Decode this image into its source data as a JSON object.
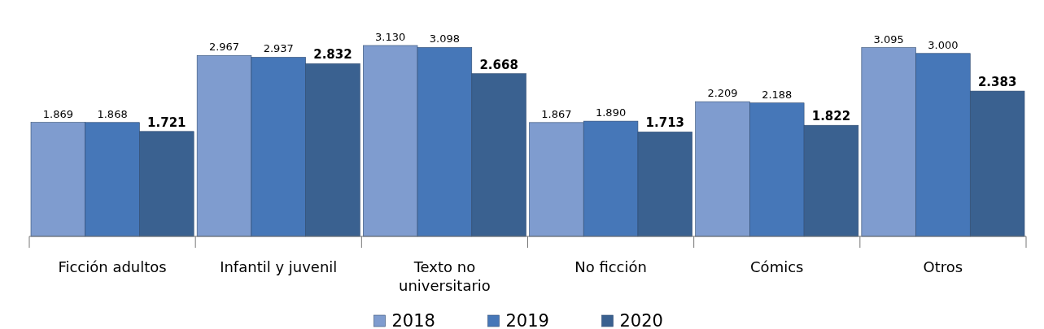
{
  "chart_data": {
    "type": "bar",
    "categories": [
      "Ficción adultos",
      "Infantil y juvenil",
      "Texto no universitario",
      "No ficción",
      "Cómics",
      "Otros"
    ],
    "series": [
      {
        "name": "2018",
        "color": "#7f9ccf",
        "values": [
          1.869,
          2.967,
          3.13,
          1.867,
          2.209,
          3.095
        ],
        "value_labels": [
          "1.869",
          "2.967",
          "3.130",
          "1.867",
          "2.209",
          "3.095"
        ]
      },
      {
        "name": "2019",
        "color": "#4677b8",
        "values": [
          1.868,
          2.937,
          3.098,
          1.89,
          2.188,
          3.0
        ],
        "value_labels": [
          "1.868",
          "2.937",
          "3.098",
          "1.890",
          "2.188",
          "3.000"
        ]
      },
      {
        "name": "2020",
        "color": "#3a6190",
        "values": [
          1.721,
          2.832,
          2.668,
          1.713,
          1.822,
          2.383
        ],
        "value_labels": [
          "1.721",
          "2.832",
          "2.668",
          "1.713",
          "1.822",
          "2.383"
        ]
      }
    ],
    "legend": "bottom"
  }
}
